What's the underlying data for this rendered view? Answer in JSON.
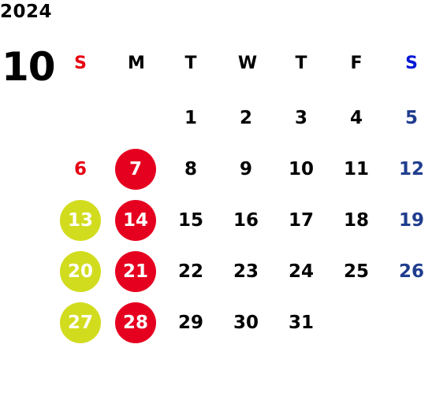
{
  "year": "2024",
  "month": "10",
  "weekdays": [
    "S",
    "M",
    "T",
    "W",
    "T",
    "F",
    "S"
  ],
  "weeks": [
    [
      "",
      "",
      "1",
      "2",
      "3",
      "4",
      "5"
    ],
    [
      "6",
      "7",
      "8",
      "9",
      "10",
      "11",
      "12"
    ],
    [
      "13",
      "14",
      "15",
      "16",
      "17",
      "18",
      "19"
    ],
    [
      "20",
      "21",
      "22",
      "23",
      "24",
      "25",
      "26"
    ],
    [
      "27",
      "28",
      "29",
      "30",
      "31",
      "",
      ""
    ]
  ],
  "highlight_colors": {
    "sunday_header": "#e60012",
    "saturday_header": "#0017d6",
    "saturday_dates": "#1f3d8e",
    "red_circle": "#e60020",
    "yellow_circle": "#d2dc1e"
  },
  "red_circle_days": [
    "7",
    "14",
    "21",
    "28"
  ],
  "yellow_circle_days": [
    "13",
    "20",
    "27"
  ]
}
